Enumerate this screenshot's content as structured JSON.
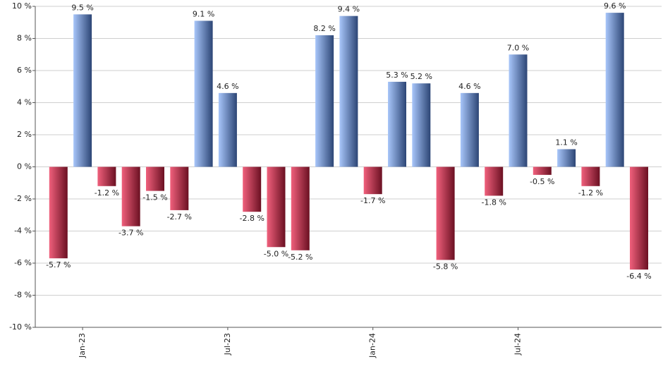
{
  "chart_data": {
    "type": "bar",
    "categories": [
      null,
      "Jan-23",
      null,
      null,
      null,
      null,
      null,
      "Jul-23",
      null,
      null,
      null,
      null,
      null,
      "Jan-24",
      null,
      null,
      null,
      null,
      null,
      "Jul-24",
      null,
      null,
      null,
      null,
      null
    ],
    "values": [
      -5.7,
      9.5,
      -1.2,
      -3.7,
      -1.5,
      -2.7,
      9.1,
      4.6,
      -2.8,
      -5.0,
      -5.2,
      8.2,
      9.4,
      -1.7,
      5.3,
      5.2,
      -5.8,
      4.6,
      -1.8,
      7.0,
      -0.5,
      1.1,
      -1.2,
      9.6,
      -6.4
    ],
    "value_labels": [
      "-5.7 %",
      "9.5 %",
      "-1.2 %",
      "-3.7 %",
      "-1.5 %",
      "-2.7 %",
      "9.1 %",
      "4.6 %",
      "-2.8 %",
      "-5.0 %",
      "-5.2 %",
      "8.2 %",
      "9.4 %",
      "-1.7 %",
      "5.3 %",
      "5.2 %",
      "-5.8 %",
      "4.6 %",
      "-1.8 %",
      "7.0 %",
      "-0.5 %",
      "1.1 %",
      "-1.2 %",
      "9.6 %",
      "-6.4 %"
    ],
    "ylim": [
      -10,
      10
    ],
    "yticks": [
      {
        "value": -10,
        "label": "-10 %"
      },
      {
        "value": -8,
        "label": "-8 %"
      },
      {
        "value": -6,
        "label": "-6 %"
      },
      {
        "value": -4,
        "label": "-4 %"
      },
      {
        "value": -2,
        "label": "-2 %"
      },
      {
        "value": 0,
        "label": "0 %"
      },
      {
        "value": 2,
        "label": "2 %"
      },
      {
        "value": 4,
        "label": "4 %"
      },
      {
        "value": 6,
        "label": "6 %"
      },
      {
        "value": 8,
        "label": "8 %"
      },
      {
        "value": 10,
        "label": "10 %"
      }
    ],
    "grid": true,
    "positive_colors": [
      "#a8c6fa",
      "#2c4575"
    ],
    "negative_colors": [
      "#f0607c",
      "#6b1022"
    ]
  }
}
